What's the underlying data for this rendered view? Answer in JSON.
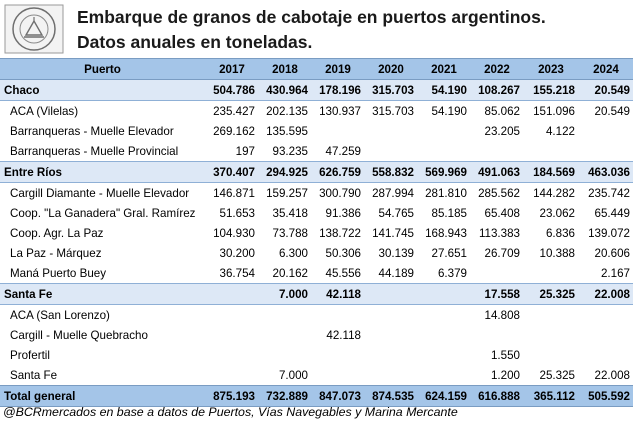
{
  "header": {
    "seal_text": "BOLSA DE COMERCIO DE ROSARIO",
    "title_line1": "Embarque de granos de cabotaje en puertos argentinos.",
    "title_line2": "Datos anuales en toneladas."
  },
  "table": {
    "columns": [
      "Puerto",
      "2017",
      "2018",
      "2019",
      "2020",
      "2021",
      "2022",
      "2023",
      "2024"
    ],
    "rows": [
      {
        "type": "group",
        "cells": [
          "Chaco",
          "504.786",
          "430.964",
          "178.196",
          "315.703",
          "54.190",
          "108.267",
          "155.218",
          "20.549"
        ]
      },
      {
        "type": "sub",
        "cells": [
          "ACA (Vilelas)",
          "235.427",
          "202.135",
          "130.937",
          "315.703",
          "54.190",
          "85.062",
          "151.096",
          "20.549"
        ]
      },
      {
        "type": "sub",
        "cells": [
          "Barranqueras - Muelle Elevador",
          "269.162",
          "135.595",
          "",
          "",
          "",
          "23.205",
          "4.122",
          ""
        ]
      },
      {
        "type": "sub",
        "cells": [
          "Barranqueras - Muelle Provincial",
          "197",
          "93.235",
          "47.259",
          "",
          "",
          "",
          "",
          ""
        ]
      },
      {
        "type": "group",
        "cells": [
          "Entre Ríos",
          "370.407",
          "294.925",
          "626.759",
          "558.832",
          "569.969",
          "491.063",
          "184.569",
          "463.036"
        ]
      },
      {
        "type": "sub",
        "cells": [
          "Cargill Diamante - Muelle Elevador",
          "146.871",
          "159.257",
          "300.790",
          "287.994",
          "281.810",
          "285.562",
          "144.282",
          "235.742"
        ]
      },
      {
        "type": "sub",
        "cells": [
          "Coop. \"La Ganadera\" Gral. Ramírez",
          "51.653",
          "35.418",
          "91.386",
          "54.765",
          "85.185",
          "65.408",
          "23.062",
          "65.449"
        ]
      },
      {
        "type": "sub",
        "cells": [
          "Coop. Agr. La Paz",
          "104.930",
          "73.788",
          "138.722",
          "141.745",
          "168.943",
          "113.383",
          "6.836",
          "139.072"
        ]
      },
      {
        "type": "sub",
        "cells": [
          "La Paz - Márquez",
          "30.200",
          "6.300",
          "50.306",
          "30.139",
          "27.651",
          "26.709",
          "10.388",
          "20.606"
        ]
      },
      {
        "type": "sub",
        "cells": [
          "Maná Puerto Buey",
          "36.754",
          "20.162",
          "45.556",
          "44.189",
          "6.379",
          "",
          "",
          "2.167"
        ]
      },
      {
        "type": "group",
        "cells": [
          "Santa Fe",
          "",
          "7.000",
          "42.118",
          "",
          "",
          "17.558",
          "25.325",
          "22.008"
        ]
      },
      {
        "type": "sub",
        "cells": [
          "ACA (San Lorenzo)",
          "",
          "",
          "",
          "",
          "",
          "14.808",
          "",
          ""
        ]
      },
      {
        "type": "sub",
        "cells": [
          "Cargill - Muelle Quebracho",
          "",
          "",
          "42.118",
          "",
          "",
          "",
          "",
          ""
        ]
      },
      {
        "type": "sub",
        "cells": [
          "Profertil",
          "",
          "",
          "",
          "",
          "",
          "1.550",
          "",
          ""
        ]
      },
      {
        "type": "sub",
        "cells": [
          "Santa Fe",
          "",
          "7.000",
          "",
          "",
          "",
          "1.200",
          "25.325",
          "22.008"
        ]
      },
      {
        "type": "total",
        "cells": [
          "Total general",
          "875.193",
          "732.889",
          "847.073",
          "874.535",
          "624.159",
          "616.888",
          "365.112",
          "505.592"
        ]
      }
    ]
  },
  "footer": {
    "source": "@BCRmercados en base a datos de Puertos, Vías Navegables y Marina Mercante"
  }
}
